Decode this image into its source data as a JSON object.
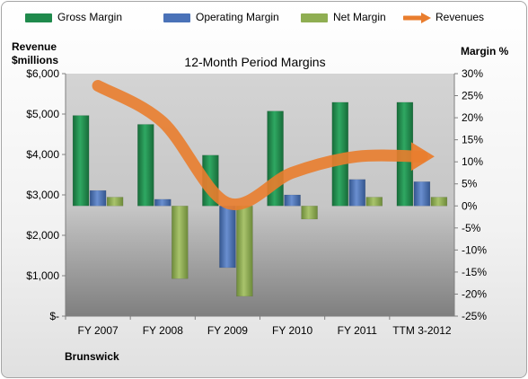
{
  "legend": {
    "gross": "Gross Margin",
    "operating": "Operating Margin",
    "net": "Net Margin",
    "revenues": "Revenues"
  },
  "axis": {
    "left_title_line1": "Revenue",
    "left_title_line2": "$millions",
    "right_title": "Margin %"
  },
  "footer": {
    "company": "Brunswick"
  },
  "colors": {
    "gross": "#1f8a4c",
    "operating": "#4a72b8",
    "net": "#8fae52",
    "revenues": "#e97d2e",
    "plot_bg_top": "#d4d4d4",
    "plot_bg_bottom": "#7f7f7f"
  },
  "chart_data": {
    "type": "bar",
    "title": "12-Month Period Margins",
    "categories": [
      "FY 2007",
      "FY 2008",
      "FY 2009",
      "FY 2010",
      "FY 2011",
      "TTM 3-2012"
    ],
    "series": [
      {
        "name": "Gross Margin",
        "axis": "right",
        "values": [
          20.5,
          18.5,
          11.5,
          21.5,
          23.5,
          23.5
        ]
      },
      {
        "name": "Operating Margin",
        "axis": "right",
        "values": [
          3.5,
          1.5,
          -14,
          2.5,
          6,
          5.5
        ]
      },
      {
        "name": "Net Margin",
        "axis": "right",
        "values": [
          2,
          -16.5,
          -20.5,
          -3,
          2,
          2
        ]
      },
      {
        "name": "Revenues",
        "axis": "left",
        "type": "line",
        "values": [
          5700,
          4800,
          2800,
          3550,
          3950,
          3950
        ]
      }
    ],
    "y_left": {
      "title": "Revenue $millions",
      "ylim": [
        0,
        6000
      ],
      "tick_values": [
        0,
        1000,
        2000,
        3000,
        4000,
        5000,
        6000
      ],
      "tick_labels": [
        "$-",
        "$1,000",
        "$2,000",
        "$3,000",
        "$4,000",
        "$5,000",
        "$6,000"
      ]
    },
    "y_right": {
      "title": "Margin %",
      "ylim": [
        -25,
        30
      ],
      "tick_values": [
        30,
        25,
        20,
        15,
        10,
        5,
        0,
        -5,
        -10,
        -15,
        -20,
        -25
      ],
      "tick_labels": [
        "30%",
        "25%",
        "20%",
        "15%",
        "10%",
        "5%",
        "0%",
        "-5%",
        "-10%",
        "-15%",
        "-20%",
        "-25%"
      ]
    },
    "legend_position": "top",
    "grid": false
  }
}
